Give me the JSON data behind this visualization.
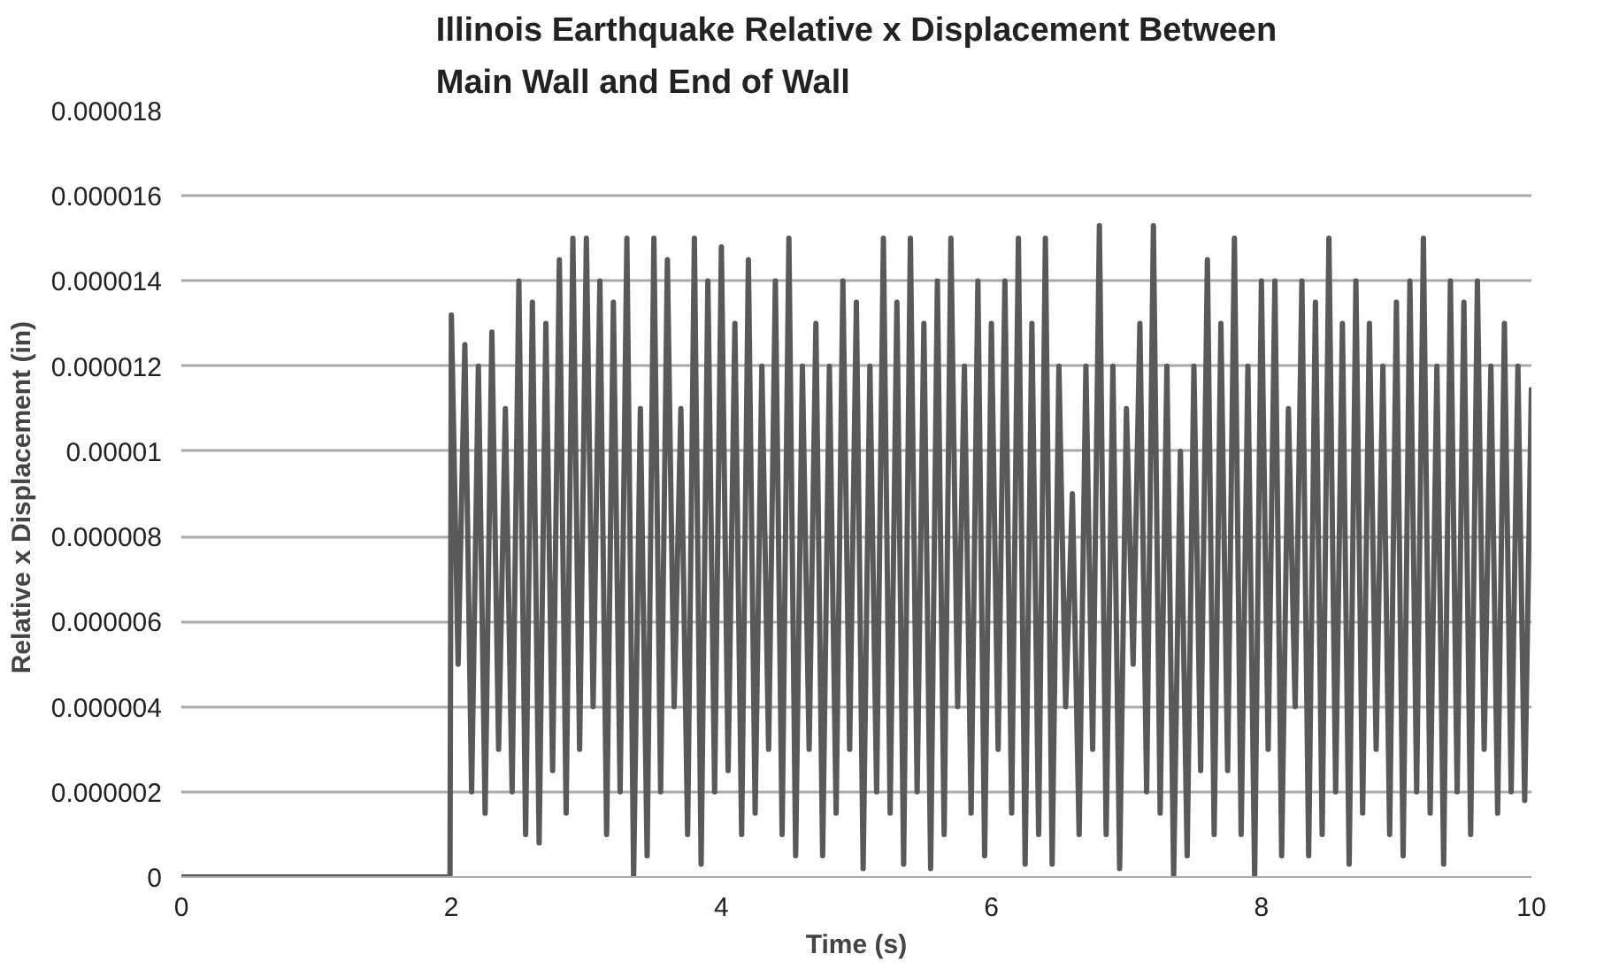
{
  "chart_data": {
    "type": "line",
    "title": "Illinois Earthquake Relative x Displacement Between Main Wall and End of Wall",
    "xlabel": "Time (s)",
    "ylabel": "Relative x Displacement  (in)",
    "x": [
      0,
      1.99,
      2.0,
      2.05,
      2.1,
      2.15,
      2.2,
      2.25,
      2.3,
      2.35,
      2.4,
      2.45,
      2.5,
      2.55,
      2.6,
      2.65,
      2.7,
      2.75,
      2.8,
      2.85,
      2.9,
      2.95,
      3.0,
      3.05,
      3.1,
      3.15,
      3.2,
      3.25,
      3.3,
      3.35,
      3.4,
      3.45,
      3.5,
      3.55,
      3.6,
      3.65,
      3.7,
      3.75,
      3.8,
      3.85,
      3.9,
      3.95,
      4.0,
      4.05,
      4.1,
      4.15,
      4.2,
      4.25,
      4.3,
      4.35,
      4.4,
      4.45,
      4.5,
      4.55,
      4.6,
      4.65,
      4.7,
      4.75,
      4.8,
      4.85,
      4.9,
      4.95,
      5.0,
      5.05,
      5.1,
      5.15,
      5.2,
      5.25,
      5.3,
      5.35,
      5.4,
      5.45,
      5.5,
      5.55,
      5.6,
      5.65,
      5.7,
      5.75,
      5.8,
      5.85,
      5.9,
      5.95,
      6.0,
      6.05,
      6.1,
      6.15,
      6.2,
      6.25,
      6.3,
      6.35,
      6.4,
      6.45,
      6.5,
      6.55,
      6.6,
      6.65,
      6.7,
      6.75,
      6.8,
      6.85,
      6.9,
      6.95,
      7.0,
      7.05,
      7.1,
      7.15,
      7.2,
      7.25,
      7.3,
      7.35,
      7.4,
      7.45,
      7.5,
      7.55,
      7.6,
      7.65,
      7.7,
      7.75,
      7.8,
      7.85,
      7.9,
      7.95,
      8.0,
      8.05,
      8.1,
      8.15,
      8.2,
      8.25,
      8.3,
      8.35,
      8.4,
      8.45,
      8.5,
      8.55,
      8.6,
      8.65,
      8.7,
      8.75,
      8.8,
      8.85,
      8.9,
      8.95,
      9.0,
      9.05,
      9.1,
      9.15,
      9.2,
      9.25,
      9.3,
      9.35,
      9.4,
      9.45,
      9.5,
      9.55,
      9.6,
      9.65,
      9.7,
      9.75,
      9.8,
      9.85,
      9.9,
      9.95,
      10.0
    ],
    "series": [
      {
        "color": "#595959",
        "values": [
          0,
          0,
          1.32e-05,
          5e-06,
          1.25e-05,
          2e-06,
          1.2e-05,
          1.5e-06,
          1.28e-05,
          3e-06,
          1.1e-05,
          2e-06,
          1.4e-05,
          1e-06,
          1.35e-05,
          8e-07,
          1.3e-05,
          2.5e-06,
          1.45e-05,
          1.5e-06,
          1.5e-05,
          3e-06,
          1.5e-05,
          4e-06,
          1.4e-05,
          1e-06,
          1.35e-05,
          2e-06,
          1.5e-05,
          0,
          1.1e-05,
          5e-07,
          1.5e-05,
          2e-06,
          1.45e-05,
          4e-06,
          1.1e-05,
          1e-06,
          1.5e-05,
          3e-07,
          1.4e-05,
          2e-06,
          1.48e-05,
          2.5e-06,
          1.3e-05,
          1e-06,
          1.45e-05,
          1.5e-06,
          1.2e-05,
          3e-06,
          1.4e-05,
          1e-06,
          1.5e-05,
          5e-07,
          1.2e-05,
          3e-06,
          1.3e-05,
          5e-07,
          1.2e-05,
          1.5e-06,
          1.4e-05,
          3e-06,
          1.35e-05,
          2e-07,
          1.2e-05,
          2e-06,
          1.5e-05,
          1.5e-06,
          1.35e-05,
          3e-07,
          1.5e-05,
          2e-06,
          1.3e-05,
          2e-07,
          1.4e-05,
          1e-06,
          1.5e-05,
          4e-06,
          1.2e-05,
          1.5e-06,
          1.4e-05,
          5e-07,
          1.3e-05,
          3e-06,
          1.4e-05,
          1.5e-06,
          1.5e-05,
          3e-07,
          1.3e-05,
          1e-06,
          1.5e-05,
          3e-07,
          1.2e-05,
          4e-06,
          9e-06,
          1e-06,
          1.2e-05,
          3e-06,
          1.53e-05,
          1e-06,
          1.2e-05,
          2e-07,
          1.1e-05,
          5e-06,
          1.3e-05,
          2e-06,
          1.53e-05,
          1.5e-06,
          1.2e-05,
          0,
          1e-05,
          5e-07,
          1.2e-05,
          2.5e-06,
          1.45e-05,
          1e-06,
          1.3e-05,
          2.5e-06,
          1.5e-05,
          1e-06,
          1.2e-05,
          0,
          1.4e-05,
          3e-06,
          1.4e-05,
          5e-07,
          1.1e-05,
          4e-06,
          1.4e-05,
          5e-07,
          1.35e-05,
          1e-06,
          1.5e-05,
          2e-06,
          1.3e-05,
          3e-07,
          1.4e-05,
          1.5e-06,
          1.3e-05,
          3e-06,
          1.2e-05,
          1e-06,
          1.35e-05,
          5e-07,
          1.4e-05,
          2e-06,
          1.5e-05,
          1.5e-06,
          1.2e-05,
          3e-07,
          1.4e-05,
          2e-06,
          1.35e-05,
          1e-06,
          1.4e-05,
          3e-06,
          1.2e-05,
          1.5e-06,
          1.3e-05,
          2e-06,
          1.2e-05,
          1.8e-06,
          1.15e-05
        ]
      }
    ],
    "xlim": [
      0,
      10
    ],
    "xticks": [
      0,
      2,
      4,
      6,
      8,
      10
    ],
    "ylim": [
      0,
      1.8e-05
    ],
    "yticks": [
      0,
      {
        "value": 2e-06,
        "label": "0.000002"
      },
      {
        "value": 4e-06,
        "label": "0.000004"
      },
      {
        "value": 6e-06,
        "label": "0.000006"
      },
      {
        "value": 8e-06,
        "label": "0.000008"
      },
      {
        "value": 1e-05,
        "label": "0.00001"
      },
      {
        "value": 1.2e-05,
        "label": "0.000012"
      },
      {
        "value": 1.4e-05,
        "label": "0.000014"
      },
      {
        "value": 1.6e-05,
        "label": "0.000016"
      },
      {
        "value": 1.8e-05,
        "label": "0.000018"
      }
    ],
    "grid": "y",
    "marker": "none",
    "line_style": "solid"
  }
}
